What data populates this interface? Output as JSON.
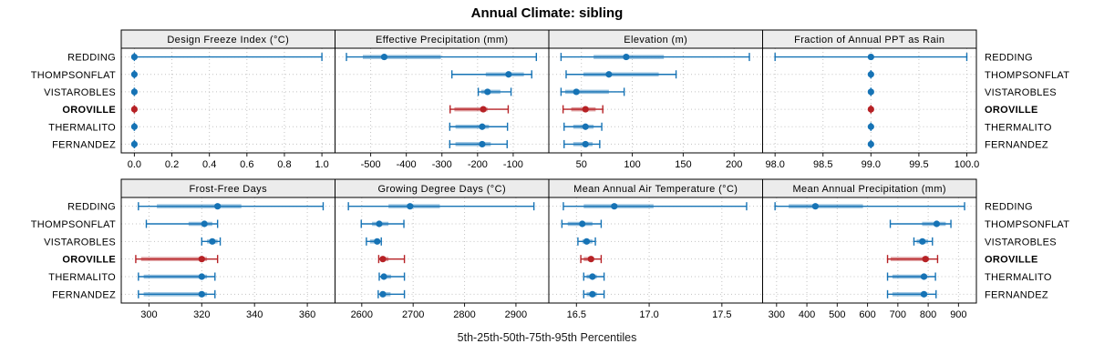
{
  "title": "Annual Climate: sibling",
  "xlabel": "5th-25th-50th-75th-95th Percentiles",
  "stations": [
    "REDDING",
    "THOMPSONFLAT",
    "VISTAROBLES",
    "OROVILLE",
    "THERMALITO",
    "FERNANDEZ"
  ],
  "highlight_station": "OROVILLE",
  "colors": {
    "series": "#1673b5",
    "highlight": "#b62125",
    "strip_bg": "#ececec",
    "grid": "#c3c3c3",
    "border": "#000000",
    "tick": "#1a1a1a",
    "text": "#000000"
  },
  "chart_data": {
    "type": "scatter",
    "subtype": "trellis-percentile-dotplot",
    "layout": "2 rows x 4 columns, shared station axis, grid dotted, no legend",
    "percentile_labels": [
      "5th",
      "25th",
      "50th",
      "75th",
      "95th"
    ],
    "stations_top_to_bottom": [
      "REDDING",
      "THOMPSONFLAT",
      "VISTAROBLES",
      "OROVILLE",
      "THERMALITO",
      "FERNANDEZ"
    ],
    "panels": [
      {
        "title": "Design Freeze Index (°C)",
        "row": 0,
        "col": 0,
        "xlim": [
          -0.07,
          1.07
        ],
        "ticks": [
          0.0,
          0.2,
          0.4,
          0.6,
          0.8,
          1.0
        ],
        "tick_labels": [
          "0.0",
          "0.2",
          "0.4",
          "0.6",
          "0.8",
          "1.0"
        ],
        "series": {
          "REDDING": [
            0,
            0,
            0,
            0,
            1
          ],
          "THOMPSONFLAT": [
            0,
            0,
            0,
            0,
            0
          ],
          "VISTAROBLES": [
            0,
            0,
            0,
            0,
            0
          ],
          "OROVILLE": [
            0,
            0,
            0,
            0,
            0
          ],
          "THERMALITO": [
            0,
            0,
            0,
            0,
            0
          ],
          "FERNANDEZ": [
            0,
            0,
            0,
            0,
            0
          ]
        }
      },
      {
        "title": "Effective Precipitation (mm)",
        "row": 0,
        "col": 1,
        "xlim": [
          -600,
          0
        ],
        "ticks": [
          -500,
          -400,
          -300,
          -200,
          -100
        ],
        "tick_labels": [
          "-500",
          "-400",
          "-300",
          "-200",
          "-100"
        ],
        "series": {
          "REDDING": [
            -568,
            -522,
            -462,
            -303,
            -35
          ],
          "THOMPSONFLAT": [
            -272,
            -177,
            -113,
            -70,
            -48
          ],
          "VISTAROBLES": [
            -198,
            -190,
            -172,
            -136,
            -106
          ],
          "OROVILLE": [
            -277,
            -265,
            -184,
            -172,
            -114
          ],
          "THERMALITO": [
            -278,
            -262,
            -187,
            -168,
            -116
          ],
          "FERNANDEZ": [
            -278,
            -262,
            -187,
            -163,
            -117
          ]
        }
      },
      {
        "title": "Elevation (m)",
        "row": 0,
        "col": 2,
        "xlim": [
          18,
          228
        ],
        "ticks": [
          50,
          100,
          150,
          200
        ],
        "tick_labels": [
          "50",
          "100",
          "150",
          "200"
        ],
        "series": {
          "REDDING": [
            30,
            62,
            94,
            131,
            215
          ],
          "THOMPSONFLAT": [
            35,
            52,
            77,
            126,
            143
          ],
          "VISTAROBLES": [
            30,
            34,
            45,
            77,
            92
          ],
          "OROVILLE": [
            32,
            40,
            54,
            64,
            71
          ],
          "THERMALITO": [
            33,
            42,
            54,
            62,
            70
          ],
          "FERNANDEZ": [
            33,
            42,
            54,
            61,
            68
          ]
        }
      },
      {
        "title": "Fraction of Annual PPT as Rain",
        "row": 0,
        "col": 3,
        "xlim": [
          97.87,
          100.1
        ],
        "ticks": [
          98.0,
          98.5,
          99.0,
          99.5,
          100.0
        ],
        "tick_labels": [
          "98.0",
          "98.5",
          "99.0",
          "99.5",
          "100.0"
        ],
        "series": {
          "REDDING": [
            98,
            99,
            99,
            99,
            100
          ],
          "THOMPSONFLAT": [
            99,
            99,
            99,
            99,
            99
          ],
          "VISTAROBLES": [
            99,
            99,
            99,
            99,
            99
          ],
          "OROVILLE": [
            99,
            99,
            99,
            99,
            99
          ],
          "THERMALITO": [
            99,
            99,
            99,
            99,
            99
          ],
          "FERNANDEZ": [
            99,
            99,
            99,
            99,
            99
          ]
        }
      },
      {
        "title": "Frost-Free Days",
        "row": 1,
        "col": 0,
        "xlim": [
          289.5,
          370.5
        ],
        "ticks": [
          300,
          320,
          340,
          360
        ],
        "tick_labels": [
          "300",
          "320",
          "340",
          "360"
        ],
        "series": {
          "REDDING": [
            296,
            303,
            326,
            335,
            366
          ],
          "THOMPSONFLAT": [
            299,
            315,
            321,
            324,
            326
          ],
          "VISTAROBLES": [
            320,
            322,
            324,
            326,
            327
          ],
          "OROVILLE": [
            295,
            297,
            320,
            322,
            326
          ],
          "THERMALITO": [
            296,
            298,
            320,
            322,
            325
          ],
          "FERNANDEZ": [
            296,
            298,
            320,
            322,
            325
          ]
        }
      },
      {
        "title": "Growing Degree Days (°C)",
        "row": 1,
        "col": 1,
        "xlim": [
          2548,
          2964
        ],
        "ticks": [
          2600,
          2700,
          2800,
          2900
        ],
        "tick_labels": [
          "2600",
          "2700",
          "2800",
          "2900"
        ],
        "series": {
          "REDDING": [
            2574,
            2652,
            2694,
            2752,
            2935
          ],
          "THOMPSONFLAT": [
            2599,
            2620,
            2634,
            2652,
            2682
          ],
          "VISTAROBLES": [
            2609,
            2616,
            2630,
            2634,
            2638
          ],
          "OROVILLE": [
            2633,
            2636,
            2641,
            2652,
            2683
          ],
          "THERMALITO": [
            2634,
            2639,
            2643,
            2657,
            2683
          ],
          "FERNANDEZ": [
            2632,
            2637,
            2641,
            2656,
            2683
          ]
        }
      },
      {
        "title": "Mean Annual Air Temperature (°C)",
        "row": 1,
        "col": 2,
        "xlim": [
          16.31,
          17.78
        ],
        "ticks": [
          16.5,
          17.0,
          17.5
        ],
        "tick_labels": [
          "16.5",
          "17.0",
          "17.5"
        ],
        "series": {
          "REDDING": [
            16.41,
            16.55,
            16.76,
            17.03,
            17.67
          ],
          "THOMPSONFLAT": [
            16.4,
            16.44,
            16.54,
            16.61,
            16.67
          ],
          "VISTAROBLES": [
            16.51,
            16.54,
            16.57,
            16.61,
            16.63
          ],
          "OROVILLE": [
            16.53,
            16.55,
            16.6,
            16.62,
            16.67
          ],
          "THERMALITO": [
            16.55,
            16.57,
            16.61,
            16.64,
            16.69
          ],
          "FERNANDEZ": [
            16.55,
            16.57,
            16.61,
            16.64,
            16.69
          ]
        }
      },
      {
        "title": "Mean Annual Precipitation (mm)",
        "row": 1,
        "col": 3,
        "xlim": [
          254,
          959
        ],
        "ticks": [
          300,
          400,
          500,
          600,
          700,
          800,
          900
        ],
        "tick_labels": [
          "300",
          "400",
          "500",
          "600",
          "700",
          "800",
          "900"
        ],
        "series": {
          "REDDING": [
            295,
            340,
            428,
            585,
            920
          ],
          "THOMPSONFLAT": [
            675,
            780,
            828,
            858,
            875
          ],
          "VISTAROBLES": [
            753,
            762,
            781,
            800,
            814
          ],
          "OROVILLE": [
            666,
            676,
            791,
            803,
            831
          ],
          "THERMALITO": [
            666,
            682,
            786,
            797,
            824
          ],
          "FERNANDEZ": [
            666,
            682,
            786,
            797,
            826
          ]
        }
      }
    ]
  }
}
